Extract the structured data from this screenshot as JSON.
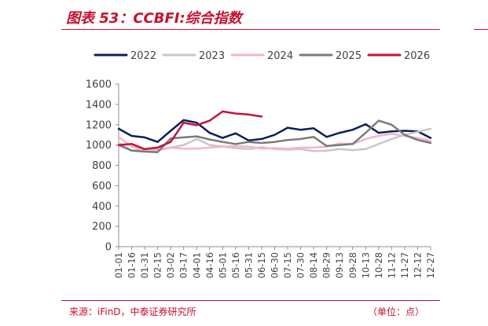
{
  "header": {
    "title": "图表 53：CCBFI:综合指数"
  },
  "footer": {
    "source": "来源：iFinD，中泰证券研究所",
    "unit": "（单位：点）"
  },
  "chart_data": {
    "type": "line",
    "title": "CCBFI:综合指数",
    "xlabel": "",
    "ylabel": "",
    "ylim": [
      0,
      1600
    ],
    "yticks": [
      0,
      200,
      400,
      600,
      800,
      1000,
      1200,
      1400,
      1600
    ],
    "grid": false,
    "legend_position": "top",
    "categories": [
      "01-01",
      "01-16",
      "01-31",
      "02-15",
      "03-02",
      "03-17",
      "04-01",
      "04-16",
      "05-01",
      "05-16",
      "05-31",
      "06-15",
      "06-30",
      "07-15",
      "07-30",
      "08-14",
      "08-29",
      "09-13",
      "09-28",
      "10-13",
      "10-28",
      "11-12",
      "11-27",
      "12-12",
      "12-27"
    ],
    "series": [
      {
        "name": "2022",
        "color": "#0b1f5c",
        "values": [
          1160,
          1090,
          1075,
          1030,
          1140,
          1245,
          1220,
          1120,
          1070,
          1115,
          1045,
          1060,
          1100,
          1170,
          1150,
          1165,
          1080,
          1120,
          1150,
          1205,
          1120,
          1135,
          1140,
          1135,
          1070
        ]
      },
      {
        "name": "2023",
        "color": "#c8c8c8",
        "values": [
          1020,
          945,
          955,
          955,
          975,
          1000,
          1060,
          1000,
          985,
          970,
          960,
          980,
          960,
          955,
          960,
          940,
          945,
          960,
          950,
          960,
          1010,
          1060,
          1100,
          1130,
          1160
        ]
      },
      {
        "name": "2024",
        "color": "#f4b6c6",
        "values": [
          1080,
          985,
          945,
          945,
          975,
          965,
          965,
          975,
          985,
          990,
          985,
          965,
          970,
          965,
          975,
          975,
          985,
          1015,
          1010,
          1060,
          1090,
          1110,
          1090,
          1070,
          1040
        ]
      },
      {
        "name": "2025",
        "color": "#7a7a7a",
        "values": [
          1000,
          945,
          935,
          930,
          1065,
          1075,
          1085,
          1055,
          1030,
          1010,
          1030,
          1020,
          1030,
          1050,
          1060,
          1080,
          990,
          1000,
          1010,
          1120,
          1240,
          1200,
          1100,
          1050,
          1020
        ]
      },
      {
        "name": "2026",
        "color": "#c0143c",
        "values": [
          1000,
          1010,
          960,
          975,
          1030,
          1220,
          1195,
          1240,
          1330,
          1310,
          1300,
          1280,
          null,
          null,
          null,
          null,
          null,
          null,
          null,
          null,
          null,
          null,
          null,
          null,
          null
        ]
      }
    ]
  }
}
